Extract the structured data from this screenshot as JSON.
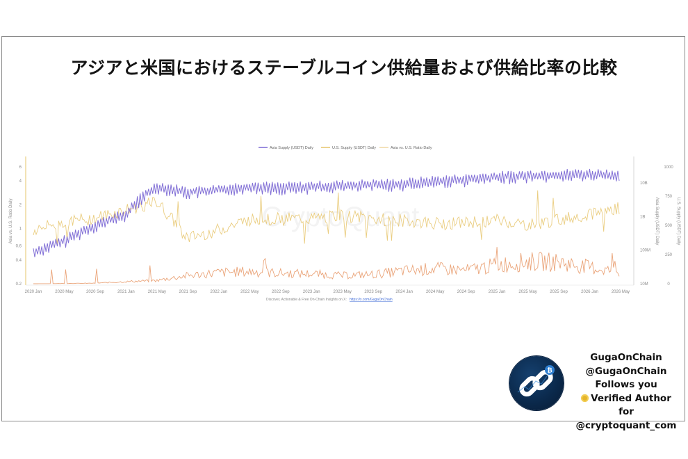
{
  "title": "アジアと米国におけるステーブルコイン供給量および供給比率の比較",
  "author": {
    "name": "GugaOnChain",
    "handle": "@GugaOnChain",
    "follows": "Follows you",
    "verified": "Verified Author for",
    "org": "@cryptoquant_com",
    "avatar_icon": "chain-link-icon",
    "badge_icon": "bitcoin-icon",
    "medal_icon": "medal-icon"
  },
  "watermark": "CryptoQuant",
  "chart_data": {
    "type": "line",
    "title": "",
    "legend_position": "top-center",
    "grid": false,
    "source_text": "Discover, Actionable & Free On-Chain Insights on X:",
    "source_link": "https://x.com/GugaOnChain",
    "x": [
      "2020 Jan",
      "2020 May",
      "2020 Sep",
      "2021 Jan",
      "2021 May",
      "2021 Sep",
      "2022 Jan",
      "2022 May",
      "2022 Sep",
      "2023 Jan",
      "2023 May",
      "2023 Sep",
      "2024 Jan",
      "2024 May",
      "2024 Sep",
      "2025 Jan",
      "2025 May",
      "2025 Sep",
      "2026 Jan",
      "2026 May"
    ],
    "axes": {
      "left": {
        "label": "Asia vs. U.S. Ratio Daily",
        "scale": "log",
        "ticks": [
          "6",
          "4",
          "2",
          "1",
          "0.6",
          "0.4",
          "0.2"
        ],
        "range": [
          0.2,
          6
        ]
      },
      "right_inner": {
        "label": "Asia Supply (USDT) Daily",
        "scale": "log",
        "ticks": [
          "10B",
          "1B",
          "100M",
          "10M"
        ],
        "range": [
          10000000,
          30000000000
        ]
      },
      "right_outer": {
        "label": "U.S. Supply (USDT) Daily",
        "scale": "linear",
        "ticks": [
          "1000",
          "750",
          "500",
          "250",
          "0"
        ],
        "range": [
          0,
          1000
        ]
      }
    },
    "series": [
      {
        "name": "Asia Supply (USDT) Daily",
        "color": "#7b68d4",
        "axis": "left",
        "values": [
          0.5,
          0.7,
          1.1,
          1.5,
          3.4,
          2.9,
          3.1,
          3.4,
          3.3,
          3.4,
          3.5,
          3.6,
          3.7,
          4.0,
          4.2,
          4.5,
          4.7,
          4.8,
          4.9,
          4.8
        ]
      },
      {
        "name": "U.S. Supply (USDT) Daily",
        "color": "#e89a6a",
        "axis": "right_outer",
        "values": [
          0,
          2,
          5,
          18,
          28,
          70,
          95,
          105,
          90,
          85,
          70,
          80,
          110,
          130,
          115,
          160,
          190,
          185,
          140,
          100
        ]
      },
      {
        "name": "Asia vs. U.S. Ratio Daily",
        "color": "#e6c46a",
        "axis": "right_outer",
        "values": [
          455,
          530,
          560,
          630,
          700,
          390,
          460,
          550,
          555,
          555,
          585,
          555,
          540,
          515,
          520,
          545,
          500,
          545,
          600,
          650
        ]
      }
    ]
  }
}
